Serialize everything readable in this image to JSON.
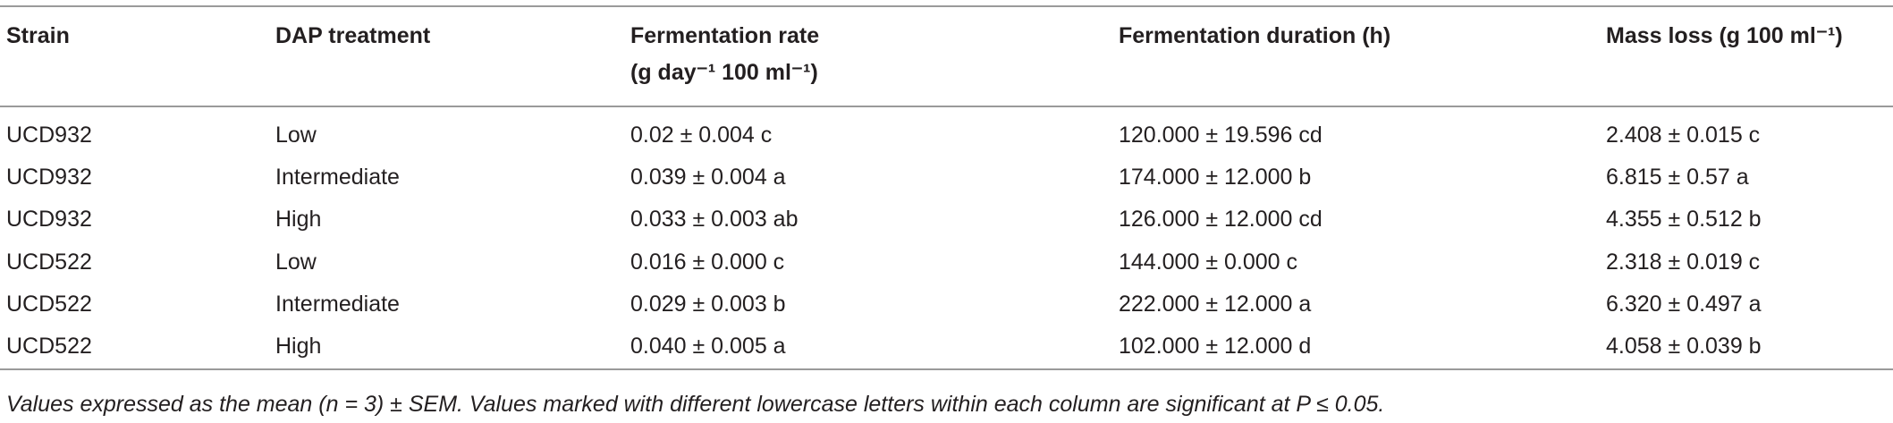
{
  "table": {
    "header": [
      "Strain",
      "DAP treatment",
      [
        "Fermentation rate",
        "(g day⁻¹ 100 ml⁻¹)"
      ],
      "Fermentation duration (h)",
      "Mass loss (g 100 ml⁻¹)"
    ],
    "rows": [
      [
        "UCD932",
        "Low",
        "0.02 ± 0.004 c",
        "120.000 ± 19.596 cd",
        "2.408 ± 0.015 c"
      ],
      [
        "UCD932",
        "Intermediate",
        "0.039 ± 0.004 a",
        "174.000 ± 12.000 b",
        "6.815 ± 0.57 a"
      ],
      [
        "UCD932",
        "High",
        "0.033 ± 0.003 ab",
        "126.000 ± 12.000 cd",
        "4.355 ± 0.512 b"
      ],
      [
        "UCD522",
        "Low",
        "0.016 ± 0.000 c",
        "144.000 ± 0.000 c",
        "2.318 ± 0.019 c"
      ],
      [
        "UCD522",
        "Intermediate",
        "0.029 ± 0.003 b",
        "222.000 ± 12.000 a",
        "6.320 ± 0.497 a"
      ],
      [
        "UCD522",
        "High",
        "0.040 ± 0.005 a",
        "102.000 ± 12.000 d",
        "4.058 ± 0.039 b"
      ]
    ],
    "footnote": "Values expressed as the mean (n = 3) ± SEM. Values marked with different lowercase letters within each column are significant at P ≤ 0.05."
  }
}
